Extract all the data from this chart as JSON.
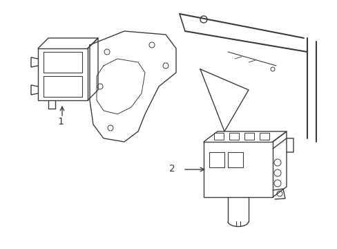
{
  "title": "",
  "background_color": "#ffffff",
  "line_color": "#3a3a3a",
  "line_width": 1.0,
  "label1": "1",
  "label2": "2",
  "figsize": [
    4.89,
    3.6
  ],
  "dpi": 100
}
